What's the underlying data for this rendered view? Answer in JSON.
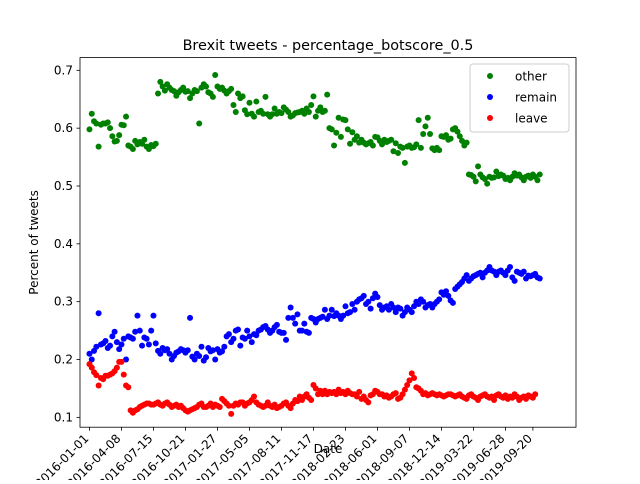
{
  "chart_data": {
    "type": "scatter",
    "title": "Brexit tweets - percentage_botscore_0.5",
    "xlabel": "Date",
    "ylabel": "Percent of tweets",
    "ylim": [
      0.083,
      0.722
    ],
    "x_start": "2015-12-03",
    "x_end": "2020-01-30",
    "x_ticks": [
      "2016-01-01",
      "2016-04-08",
      "2016-07-15",
      "2016-10-21",
      "2017-01-27",
      "2017-05-05",
      "2017-08-11",
      "2017-11-17",
      "2018-02-23",
      "2018-06-01",
      "2018-09-07",
      "2018-12-14",
      "2019-03-22",
      "2019-06-28",
      "2019-09-20"
    ],
    "y_ticks": [
      0.1,
      0.2,
      0.3,
      0.4,
      0.5,
      0.6,
      0.7
    ],
    "y_tick_labels": [
      "0.1",
      "0.2",
      "0.3",
      "0.4",
      "0.5",
      "0.6",
      "0.7"
    ],
    "legend_position": "top-right",
    "grid": false,
    "x": [
      "2016-01-01",
      "2016-01-08",
      "2016-01-15",
      "2016-01-22",
      "2016-01-29",
      "2016-02-05",
      "2016-02-12",
      "2016-02-19",
      "2016-02-26",
      "2016-03-04",
      "2016-03-11",
      "2016-03-18",
      "2016-03-25",
      "2016-04-01",
      "2016-04-08",
      "2016-04-15",
      "2016-04-22",
      "2016-04-29",
      "2016-05-06",
      "2016-05-13",
      "2016-05-20",
      "2016-05-27",
      "2016-06-03",
      "2016-06-10",
      "2016-06-17",
      "2016-06-24",
      "2016-07-01",
      "2016-07-08",
      "2016-07-15",
      "2016-07-22",
      "2016-07-29",
      "2016-08-05",
      "2016-08-12",
      "2016-08-19",
      "2016-08-26",
      "2016-09-02",
      "2016-09-09",
      "2016-09-16",
      "2016-09-23",
      "2016-09-30",
      "2016-10-07",
      "2016-10-14",
      "2016-10-21",
      "2016-10-28",
      "2016-11-04",
      "2016-11-11",
      "2016-11-18",
      "2016-11-25",
      "2016-12-02",
      "2016-12-09",
      "2016-12-16",
      "2016-12-23",
      "2016-12-30",
      "2017-01-06",
      "2017-01-13",
      "2017-01-20",
      "2017-01-27",
      "2017-02-03",
      "2017-02-10",
      "2017-02-17",
      "2017-02-24",
      "2017-03-03",
      "2017-03-10",
      "2017-03-17",
      "2017-03-24",
      "2017-03-31",
      "2017-04-07",
      "2017-04-14",
      "2017-04-21",
      "2017-04-28",
      "2017-05-05",
      "2017-05-12",
      "2017-05-19",
      "2017-05-26",
      "2017-06-02",
      "2017-06-09",
      "2017-06-16",
      "2017-06-23",
      "2017-06-30",
      "2017-07-07",
      "2017-07-14",
      "2017-07-21",
      "2017-07-28",
      "2017-08-04",
      "2017-08-11",
      "2017-08-18",
      "2017-08-25",
      "2017-09-01",
      "2017-09-08",
      "2017-09-15",
      "2017-09-22",
      "2017-09-29",
      "2017-10-06",
      "2017-10-13",
      "2017-10-20",
      "2017-10-27",
      "2017-11-03",
      "2017-11-10",
      "2017-11-17",
      "2017-11-24",
      "2017-12-01",
      "2017-12-08",
      "2017-12-15",
      "2017-12-22",
      "2017-12-29",
      "2018-01-05",
      "2018-01-12",
      "2018-01-19",
      "2018-01-26",
      "2018-02-02",
      "2018-02-09",
      "2018-02-16",
      "2018-02-23",
      "2018-03-02",
      "2018-03-09",
      "2018-03-16",
      "2018-03-23",
      "2018-03-30",
      "2018-04-06",
      "2018-04-13",
      "2018-04-20",
      "2018-04-27",
      "2018-05-04",
      "2018-05-11",
      "2018-05-18",
      "2018-05-25",
      "2018-06-01",
      "2018-06-08",
      "2018-06-15",
      "2018-06-22",
      "2018-06-29",
      "2018-07-06",
      "2018-07-13",
      "2018-07-20",
      "2018-07-27",
      "2018-08-03",
      "2018-08-10",
      "2018-08-17",
      "2018-08-24",
      "2018-08-31",
      "2018-09-07",
      "2018-09-14",
      "2018-09-21",
      "2018-09-28",
      "2018-10-05",
      "2018-10-12",
      "2018-10-19",
      "2018-10-26",
      "2018-11-02",
      "2018-11-09",
      "2018-11-16",
      "2018-11-23",
      "2018-11-30",
      "2018-12-07",
      "2018-12-14",
      "2018-12-21",
      "2018-12-28",
      "2019-01-04",
      "2019-01-11",
      "2019-01-18",
      "2019-01-25",
      "2019-02-01",
      "2019-02-08",
      "2019-02-15",
      "2019-02-22",
      "2019-03-01",
      "2019-03-08",
      "2019-03-15",
      "2019-03-22",
      "2019-03-29",
      "2019-04-05",
      "2019-04-12",
      "2019-04-19",
      "2019-04-26",
      "2019-05-03",
      "2019-05-10",
      "2019-05-17",
      "2019-05-24",
      "2019-05-31",
      "2019-06-07",
      "2019-06-14",
      "2019-06-21",
      "2019-06-28",
      "2019-07-05",
      "2019-07-12",
      "2019-07-19",
      "2019-07-26",
      "2019-08-02",
      "2019-08-09",
      "2019-08-16",
      "2019-08-23",
      "2019-08-30",
      "2019-09-06",
      "2019-09-13",
      "2019-09-20",
      "2019-09-27",
      "2019-10-04",
      "2019-10-11",
      "2019-10-18",
      "2019-10-25",
      "2019-11-01"
    ],
    "series": [
      {
        "name": "other",
        "color": "#008000",
        "values": [
          0.598,
          0.625,
          0.612,
          0.608,
          0.568,
          0.606,
          0.608,
          0.608,
          0.61,
          0.6,
          0.586,
          0.577,
          0.578,
          0.588,
          0.606,
          0.605,
          0.62,
          0.57,
          0.568,
          0.564,
          0.578,
          0.572,
          0.576,
          0.573,
          0.58,
          0.568,
          0.564,
          0.571,
          0.569,
          0.573,
          0.66,
          0.68,
          0.672,
          0.665,
          0.676,
          0.67,
          0.666,
          0.664,
          0.656,
          0.662,
          0.666,
          0.67,
          0.663,
          0.664,
          0.652,
          0.66,
          0.666,
          0.664,
          0.608,
          0.67,
          0.676,
          0.672,
          0.662,
          0.66,
          0.654,
          0.692,
          0.672,
          0.668,
          0.67,
          0.665,
          0.66,
          0.664,
          0.668,
          0.64,
          0.628,
          0.66,
          0.652,
          0.655,
          0.631,
          0.624,
          0.644,
          0.625,
          0.62,
          0.646,
          0.628,
          0.63,
          0.625,
          0.654,
          0.624,
          0.62,
          0.624,
          0.634,
          0.625,
          0.628,
          0.626,
          0.636,
          0.632,
          0.628,
          0.62,
          0.622,
          0.626,
          0.627,
          0.628,
          0.63,
          0.625,
          0.634,
          0.628,
          0.64,
          0.655,
          0.62,
          0.63,
          0.636,
          0.628,
          0.63,
          0.658,
          0.6,
          0.598,
          0.57,
          0.592,
          0.618,
          0.585,
          0.615,
          0.614,
          0.598,
          0.573,
          0.593,
          0.58,
          0.586,
          0.575,
          0.58,
          0.575,
          0.572,
          0.574,
          0.576,
          0.57,
          0.585,
          0.584,
          0.578,
          0.572,
          0.58,
          0.576,
          0.578,
          0.58,
          0.56,
          0.574,
          0.557,
          0.568,
          0.566,
          0.54,
          0.568,
          0.57,
          0.566,
          0.567,
          0.572,
          0.614,
          0.566,
          0.59,
          0.603,
          0.618,
          0.59,
          0.565,
          0.562,
          0.566,
          0.562,
          0.586,
          0.585,
          0.588,
          0.58,
          0.582,
          0.598,
          0.6,
          0.594,
          0.586,
          0.578,
          0.57,
          0.575,
          0.52,
          0.519,
          0.516,
          0.508,
          0.534,
          0.52,
          0.515,
          0.512,
          0.504,
          0.516,
          0.514,
          0.515,
          0.525,
          0.517,
          0.52,
          0.518,
          0.512,
          0.514,
          0.51,
          0.516,
          0.522,
          0.518,
          0.52,
          0.515,
          0.51,
          0.516,
          0.518,
          0.514,
          0.52,
          0.516,
          0.51,
          0.52
        ]
      },
      {
        "name": "remain",
        "color": "#0000ff",
        "values": [
          0.21,
          0.2,
          0.215,
          0.222,
          0.28,
          0.226,
          0.228,
          0.232,
          0.22,
          0.224,
          0.24,
          0.248,
          0.23,
          0.218,
          0.226,
          0.236,
          0.2,
          0.24,
          0.238,
          0.236,
          0.248,
          0.276,
          0.25,
          0.224,
          0.238,
          0.236,
          0.226,
          0.25,
          0.276,
          0.228,
          0.215,
          0.21,
          0.22,
          0.216,
          0.218,
          0.21,
          0.2,
          0.206,
          0.212,
          0.214,
          0.218,
          0.216,
          0.212,
          0.216,
          0.272,
          0.205,
          0.2,
          0.21,
          0.206,
          0.222,
          0.198,
          0.204,
          0.22,
          0.214,
          0.216,
          0.2,
          0.218,
          0.212,
          0.214,
          0.222,
          0.24,
          0.244,
          0.23,
          0.236,
          0.25,
          0.252,
          0.224,
          0.238,
          0.236,
          0.25,
          0.24,
          0.23,
          0.244,
          0.242,
          0.25,
          0.252,
          0.256,
          0.258,
          0.252,
          0.246,
          0.25,
          0.256,
          0.26,
          0.248,
          0.246,
          0.246,
          0.234,
          0.272,
          0.29,
          0.272,
          0.262,
          0.278,
          0.25,
          0.25,
          0.262,
          0.248,
          0.246,
          0.272,
          0.27,
          0.264,
          0.27,
          0.272,
          0.274,
          0.286,
          0.27,
          0.276,
          0.286,
          0.275,
          0.28,
          0.276,
          0.27,
          0.276,
          0.292,
          0.28,
          0.282,
          0.296,
          0.286,
          0.3,
          0.304,
          0.306,
          0.31,
          0.296,
          0.3,
          0.288,
          0.306,
          0.314,
          0.308,
          0.294,
          0.286,
          0.29,
          0.292,
          0.286,
          0.296,
          0.29,
          0.282,
          0.29,
          0.288,
          0.276,
          0.282,
          0.29,
          0.286,
          0.282,
          0.292,
          0.3,
          0.296,
          0.304,
          0.3,
          0.29,
          0.294,
          0.296,
          0.29,
          0.296,
          0.3,
          0.304,
          0.316,
          0.312,
          0.318,
          0.31,
          0.302,
          0.298,
          0.322,
          0.326,
          0.33,
          0.334,
          0.34,
          0.346,
          0.336,
          0.34,
          0.344,
          0.346,
          0.348,
          0.35,
          0.342,
          0.35,
          0.354,
          0.36,
          0.354,
          0.352,
          0.346,
          0.352,
          0.354,
          0.35,
          0.346,
          0.354,
          0.36,
          0.342,
          0.336,
          0.352,
          0.35,
          0.348,
          0.352,
          0.34,
          0.345,
          0.344,
          0.346,
          0.348,
          0.342,
          0.34
        ]
      },
      {
        "name": "leave",
        "color": "#ff0000",
        "values": [
          0.192,
          0.186,
          0.178,
          0.173,
          0.155,
          0.168,
          0.166,
          0.172,
          0.172,
          0.174,
          0.176,
          0.18,
          0.186,
          0.196,
          0.196,
          0.174,
          0.155,
          0.152,
          0.112,
          0.108,
          0.112,
          0.114,
          0.118,
          0.12,
          0.122,
          0.124,
          0.124,
          0.122,
          0.122,
          0.124,
          0.126,
          0.122,
          0.12,
          0.124,
          0.126,
          0.122,
          0.118,
          0.12,
          0.122,
          0.118,
          0.12,
          0.116,
          0.112,
          0.11,
          0.112,
          0.114,
          0.116,
          0.118,
          0.122,
          0.124,
          0.118,
          0.118,
          0.12,
          0.124,
          0.118,
          0.122,
          0.12,
          0.118,
          0.132,
          0.128,
          0.124,
          0.12,
          0.106,
          0.12,
          0.124,
          0.122,
          0.126,
          0.126,
          0.12,
          0.124,
          0.126,
          0.13,
          0.136,
          0.126,
          0.122,
          0.12,
          0.118,
          0.12,
          0.126,
          0.12,
          0.118,
          0.122,
          0.116,
          0.118,
          0.12,
          0.124,
          0.126,
          0.12,
          0.116,
          0.124,
          0.13,
          0.128,
          0.136,
          0.13,
          0.136,
          0.14,
          0.134,
          0.13,
          0.156,
          0.15,
          0.14,
          0.146,
          0.14,
          0.146,
          0.14,
          0.144,
          0.142,
          0.144,
          0.14,
          0.148,
          0.142,
          0.144,
          0.14,
          0.146,
          0.142,
          0.14,
          0.14,
          0.136,
          0.144,
          0.132,
          0.136,
          0.13,
          0.126,
          0.138,
          0.14,
          0.146,
          0.144,
          0.14,
          0.14,
          0.136,
          0.138,
          0.134,
          0.136,
          0.14,
          0.142,
          0.132,
          0.134,
          0.14,
          0.148,
          0.156,
          0.164,
          0.176,
          0.168,
          0.152,
          0.15,
          0.146,
          0.14,
          0.142,
          0.138,
          0.14,
          0.142,
          0.14,
          0.138,
          0.14,
          0.138,
          0.136,
          0.138,
          0.14,
          0.14,
          0.138,
          0.136,
          0.138,
          0.14,
          0.136,
          0.134,
          0.132,
          0.138,
          0.14,
          0.136,
          0.134,
          0.13,
          0.136,
          0.138,
          0.14,
          0.136,
          0.134,
          0.136,
          0.13,
          0.138,
          0.14,
          0.136,
          0.134,
          0.138,
          0.132,
          0.136,
          0.134,
          0.14,
          0.136,
          0.13,
          0.134,
          0.136,
          0.132,
          0.138,
          0.136,
          0.134,
          0.14
        ]
      }
    ]
  }
}
